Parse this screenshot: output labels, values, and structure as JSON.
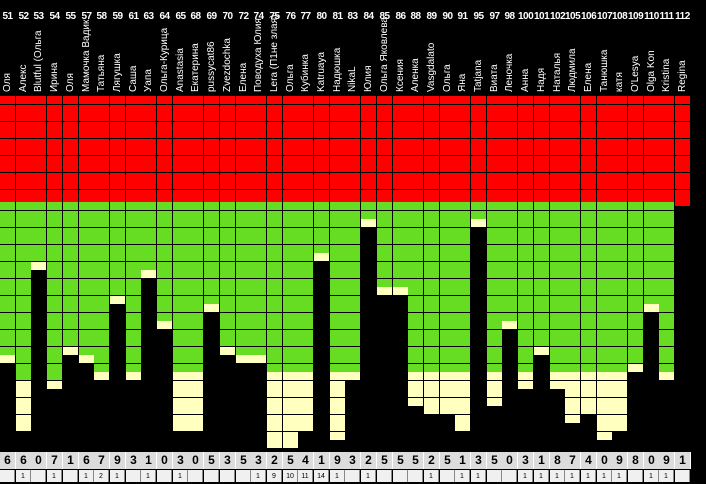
{
  "title": "",
  "colors": {
    "red": "#ff0000",
    "green": "#66dd22",
    "yellow": "#ffffc0",
    "background": "#000000",
    "grid": "#000000"
  },
  "columns": [
    {
      "num": "51",
      "name": "Оля",
      "level": 0.63,
      "yellow": 0.0,
      "digit": "6",
      "sub": ""
    },
    {
      "num": "52",
      "name": "Алекс",
      "level": 0.75,
      "yellow": 0.18,
      "digit": "6",
      "sub": "1"
    },
    {
      "num": "53",
      "name": "Blutful (Ольга",
      "level": 0.26,
      "yellow": 0.0,
      "digit": "0",
      "sub": ""
    },
    {
      "num": "54",
      "name": "Ирина",
      "level": 0.73,
      "yellow": 0.0,
      "digit": "7",
      "sub": "1"
    },
    {
      "num": "55",
      "name": "Оля",
      "level": 0.6,
      "yellow": 0.0,
      "digit": "1",
      "sub": ""
    },
    {
      "num": "57",
      "name": "Мамочка Вадик",
      "level": 0.65,
      "yellow": 0.0,
      "digit": "6",
      "sub": "1"
    },
    {
      "num": "58",
      "name": "Татьяна",
      "level": 0.7,
      "yellow": 0.0,
      "digit": "7",
      "sub": "2"
    },
    {
      "num": "59",
      "name": "Лягушка",
      "level": 0.4,
      "yellow": 0.0,
      "digit": "9",
      "sub": "1"
    },
    {
      "num": "61",
      "name": "Саша",
      "level": 0.7,
      "yellow": 0.0,
      "digit": "3",
      "sub": ""
    },
    {
      "num": "63",
      "name": "Уапа",
      "level": 0.3,
      "yellow": 0.0,
      "digit": "1",
      "sub": "1"
    },
    {
      "num": "64",
      "name": "Ольга-Курица",
      "level": 0.49,
      "yellow": 0.0,
      "digit": "0",
      "sub": ""
    },
    {
      "num": "65",
      "name": "Anastasia",
      "level": 0.7,
      "yellow": 0.2,
      "digit": "3",
      "sub": "1"
    },
    {
      "num": "68",
      "name": "Екатерина",
      "level": 0.7,
      "yellow": 0.2,
      "digit": "0",
      "sub": ""
    },
    {
      "num": "69",
      "name": "pussycat86",
      "level": 0.43,
      "yellow": 0.0,
      "digit": "5",
      "sub": ""
    },
    {
      "num": "70",
      "name": "Zvezdochka",
      "level": 0.6,
      "yellow": 0.0,
      "digit": "3",
      "sub": ""
    },
    {
      "num": "72",
      "name": "Елена",
      "level": 0.63,
      "yellow": 0.0,
      "digit": "5",
      "sub": ""
    },
    {
      "num": "74",
      "name": "Поводуха Юлия",
      "level": 0.63,
      "yellow": 0.0,
      "digit": "3",
      "sub": "1"
    },
    {
      "num": "75",
      "name": "Lera (П1не злая)",
      "level": 0.7,
      "yellow": 0.28,
      "digit": "2",
      "sub": "9"
    },
    {
      "num": "76",
      "name": "Ольга",
      "level": 0.7,
      "yellow": 0.28,
      "digit": "5",
      "sub": "10"
    },
    {
      "num": "77",
      "name": "Кубинка",
      "level": 0.7,
      "yellow": 0.2,
      "digit": "4",
      "sub": "11"
    },
    {
      "num": "80",
      "name": "Katruaya",
      "level": 0.22,
      "yellow": 0.0,
      "digit": "1",
      "sub": "14"
    },
    {
      "num": "81",
      "name": "Надюшка",
      "level": 0.7,
      "yellow": 0.25,
      "digit": "9",
      "sub": "1"
    },
    {
      "num": "83",
      "name": "NikaL",
      "level": 0.7,
      "yellow": 0.0,
      "digit": "3",
      "sub": ""
    },
    {
      "num": "84",
      "name": "Юлия",
      "level": 0.08,
      "yellow": 0.0,
      "digit": "2",
      "sub": "1"
    },
    {
      "num": "85",
      "name": "Ольга Яковлева",
      "level": 0.38,
      "yellow": 0.0,
      "digit": "5",
      "sub": ""
    },
    {
      "num": "86",
      "name": "Ксения",
      "level": 0.38,
      "yellow": 0.0,
      "digit": "5",
      "sub": ""
    },
    {
      "num": "88",
      "name": "Аленка",
      "level": 0.7,
      "yellow": 0.12,
      "digit": "5",
      "sub": ""
    },
    {
      "num": "89",
      "name": "Vasgdalato",
      "level": 0.7,
      "yellow": 0.16,
      "digit": "2",
      "sub": "1"
    },
    {
      "num": "90",
      "name": "Ольга",
      "level": 0.7,
      "yellow": 0.16,
      "digit": "5",
      "sub": ""
    },
    {
      "num": "91",
      "name": "Яна",
      "level": 0.7,
      "yellow": 0.22,
      "digit": "1",
      "sub": "1"
    },
    {
      "num": "95",
      "name": "Tatjana",
      "level": 0.08,
      "yellow": 0.0,
      "digit": "3",
      "sub": "1"
    },
    {
      "num": "97",
      "name": "Виата",
      "level": 0.7,
      "yellow": 0.12,
      "digit": "5",
      "sub": ""
    },
    {
      "num": "98",
      "name": "Леночка",
      "level": 0.5,
      "yellow": 0.0,
      "digit": "0",
      "sub": ""
    },
    {
      "num": "100",
      "name": "Анна",
      "level": 0.7,
      "yellow": 0.06,
      "digit": "3",
      "sub": "1"
    },
    {
      "num": "101",
      "name": "Надя",
      "level": 0.62,
      "yellow": 0.0,
      "digit": "1",
      "sub": "1"
    },
    {
      "num": "102",
      "name": "Наталья",
      "level": 0.7,
      "yellow": 0.06,
      "digit": "8",
      "sub": "1"
    },
    {
      "num": "105",
      "name": "Людмила",
      "level": 0.7,
      "yellow": 0.18,
      "digit": "7",
      "sub": "1"
    },
    {
      "num": "106",
      "name": "Елена",
      "level": 0.7,
      "yellow": 0.16,
      "digit": "4",
      "sub": "1"
    },
    {
      "num": "107",
      "name": "Танюшка",
      "level": 0.7,
      "yellow": 0.26,
      "digit": "0",
      "sub": "1"
    },
    {
      "num": "108",
      "name": "катя",
      "level": 0.7,
      "yellow": 0.22,
      "digit": "9",
      "sub": "1"
    },
    {
      "num": "109",
      "name": "O'Lesya",
      "level": 0.68,
      "yellow": 0.0,
      "digit": "8",
      "sub": ""
    },
    {
      "num": "110",
      "name": "Olga Kon",
      "level": 0.42,
      "yellow": 0.0,
      "digit": "0",
      "sub": "1"
    },
    {
      "num": "111",
      "name": "Kristina",
      "level": 0.7,
      "yellow": 0.0,
      "digit": "9",
      "sub": "1"
    },
    {
      "num": "112",
      "name": "Regina",
      "level": 0.0,
      "yellow": 0.0,
      "digit": "1",
      "sub": ""
    }
  ]
}
